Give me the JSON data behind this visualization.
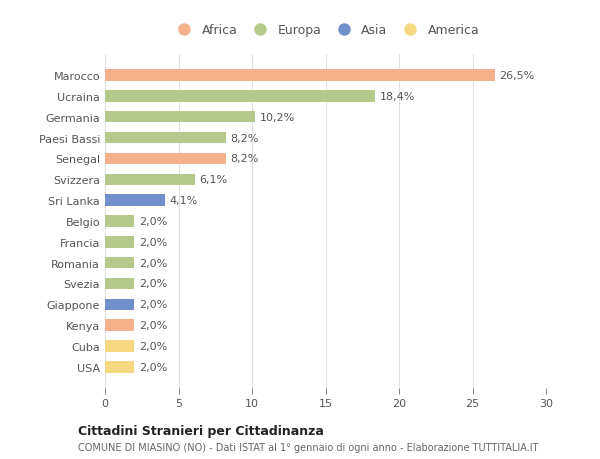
{
  "countries": [
    "Marocco",
    "Ucraina",
    "Germania",
    "Paesi Bassi",
    "Senegal",
    "Svizzera",
    "Sri Lanka",
    "Belgio",
    "Francia",
    "Romania",
    "Svezia",
    "Giappone",
    "Kenya",
    "Cuba",
    "USA"
  ],
  "values": [
    26.5,
    18.4,
    10.2,
    8.2,
    8.2,
    6.1,
    4.1,
    2.0,
    2.0,
    2.0,
    2.0,
    2.0,
    2.0,
    2.0,
    2.0
  ],
  "labels": [
    "26,5%",
    "18,4%",
    "10,2%",
    "8,2%",
    "8,2%",
    "6,1%",
    "4,1%",
    "2,0%",
    "2,0%",
    "2,0%",
    "2,0%",
    "2,0%",
    "2,0%",
    "2,0%",
    "2,0%"
  ],
  "continents": [
    "Africa",
    "Europa",
    "Europa",
    "Europa",
    "Africa",
    "Europa",
    "Asia",
    "Europa",
    "Europa",
    "Europa",
    "Europa",
    "Asia",
    "Africa",
    "America",
    "America"
  ],
  "colors": {
    "Africa": "#F5B08A",
    "Europa": "#B5C98A",
    "Asia": "#7090CC",
    "America": "#F5D880"
  },
  "legend_order": [
    "Africa",
    "Europa",
    "Asia",
    "America"
  ],
  "xlim": [
    0,
    30
  ],
  "xticks": [
    0,
    5,
    10,
    15,
    20,
    25,
    30
  ],
  "title_bold": "Cittadini Stranieri per Cittadinanza",
  "subtitle": "COMUNE DI MIASINO (NO) - Dati ISTAT al 1° gennaio di ogni anno - Elaborazione TUTTITALIA.IT",
  "background_color": "#ffffff",
  "bar_height": 0.55,
  "grid_color": "#e0e0e0",
  "label_fontsize": 8,
  "ytick_fontsize": 8,
  "xtick_fontsize": 8
}
